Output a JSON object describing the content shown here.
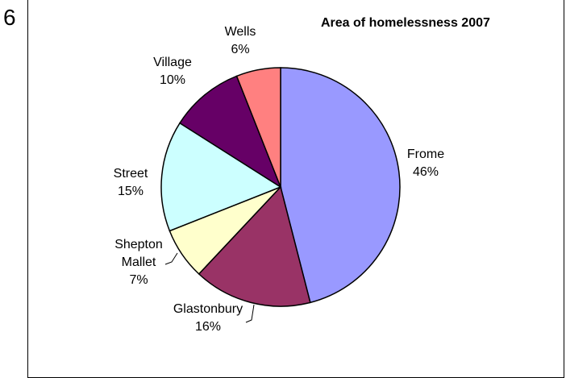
{
  "page_number": "6",
  "chart_data": {
    "type": "pie",
    "title": "Area of homelessness 2007",
    "slices": [
      {
        "name": "Frome",
        "pct_label": "46%",
        "value": 46,
        "color": "#9999ff"
      },
      {
        "name": "Glastonbury",
        "pct_label": "16%",
        "value": 16,
        "color": "#993366"
      },
      {
        "name": "Shepton Mallet",
        "name_lines": [
          "Shepton",
          "Mallet"
        ],
        "pct_label": "7%",
        "value": 7,
        "color": "#ffffcc"
      },
      {
        "name": "Street",
        "pct_label": "15%",
        "value": 15,
        "color": "#ccffff"
      },
      {
        "name": "Village",
        "pct_label": "10%",
        "value": 10,
        "color": "#660066"
      },
      {
        "name": "Wells",
        "pct_label": "6%",
        "value": 6,
        "color": "#ff8080"
      }
    ]
  }
}
